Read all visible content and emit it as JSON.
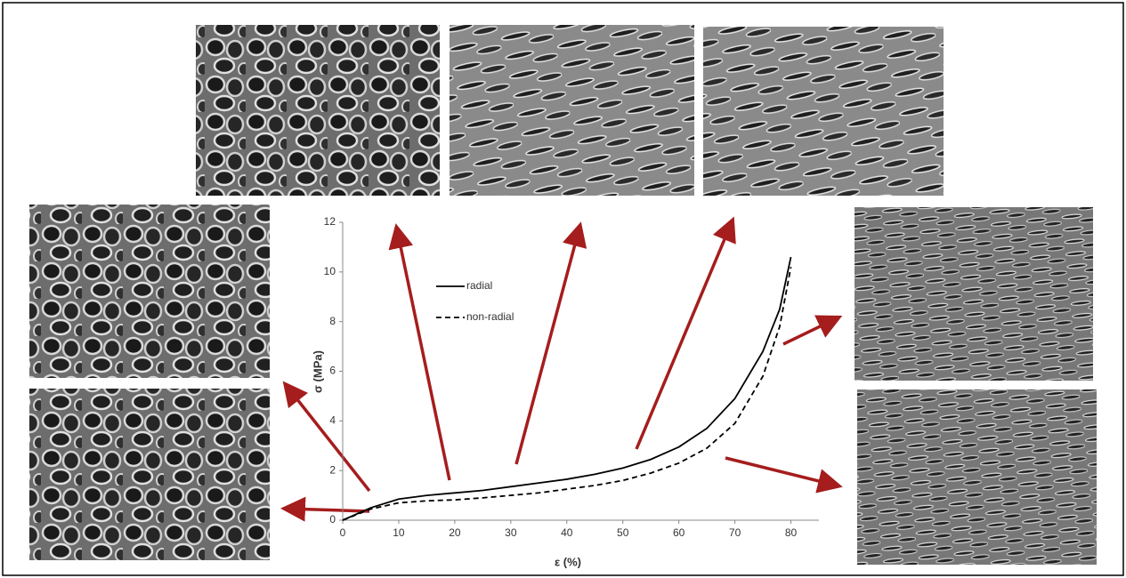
{
  "chart_data": {
    "type": "line",
    "x_label": "ε (%)",
    "y_label": "σ (MPa)",
    "x": [
      0,
      5,
      10,
      15,
      20,
      25,
      30,
      35,
      40,
      45,
      50,
      55,
      60,
      65,
      70,
      75,
      78,
      80
    ],
    "series": [
      {
        "name": "radial",
        "color": "#000000",
        "dash": "solid",
        "values": [
          0,
          0.5,
          0.85,
          1.0,
          1.1,
          1.2,
          1.35,
          1.5,
          1.65,
          1.85,
          2.1,
          2.45,
          2.95,
          3.7,
          4.9,
          6.8,
          8.5,
          10.6
        ]
      },
      {
        "name": "non-radial",
        "color": "#000000",
        "dash": "dashed",
        "values": [
          0,
          0.45,
          0.7,
          0.78,
          0.82,
          0.9,
          1.0,
          1.1,
          1.25,
          1.4,
          1.6,
          1.9,
          2.3,
          2.9,
          3.9,
          5.8,
          7.8,
          10.2
        ]
      }
    ],
    "xlim": [
      0,
      85
    ],
    "ylim": [
      0,
      12
    ],
    "xticks": [
      0,
      10,
      20,
      30,
      40,
      50,
      60,
      70,
      80
    ],
    "yticks": [
      0,
      2,
      4,
      6,
      8,
      10,
      12
    ]
  }
}
